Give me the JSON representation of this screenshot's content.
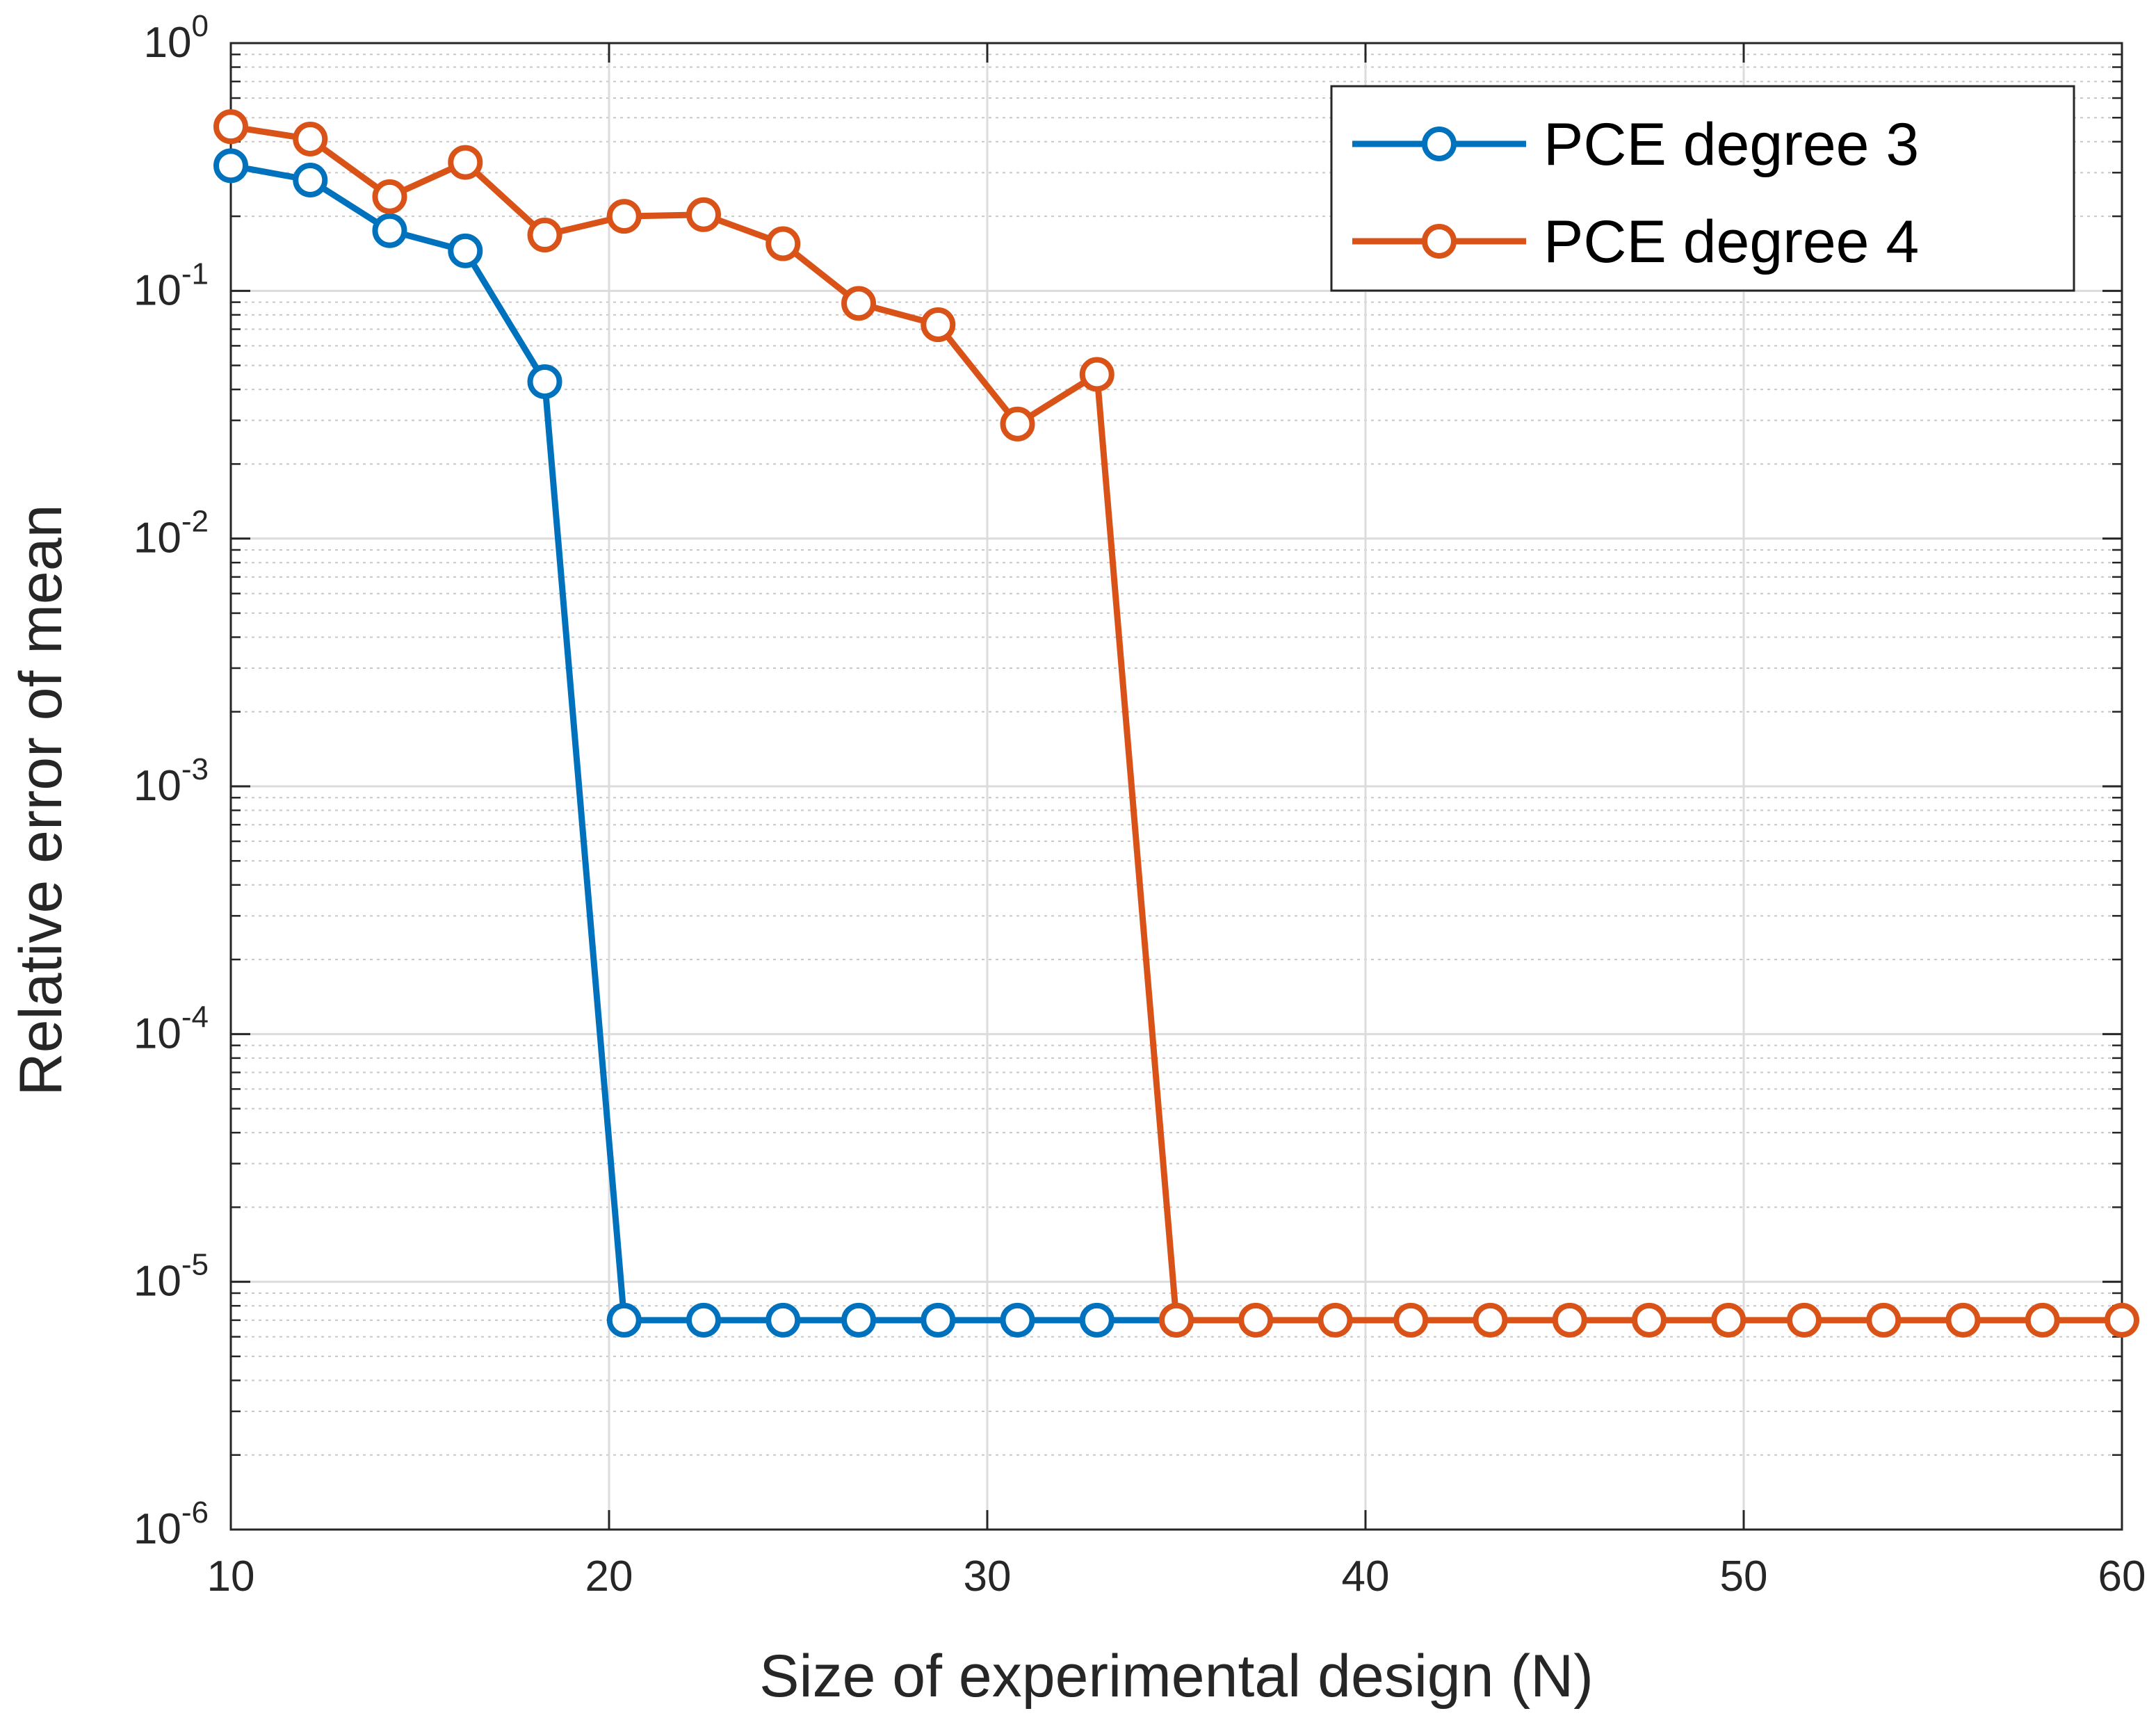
{
  "chart_data": {
    "type": "line",
    "title": "",
    "xlabel": "Size of experimental design (N)",
    "ylabel": "Relative error of mean",
    "x_scale": "linear",
    "y_scale": "log",
    "xlim": [
      10,
      60
    ],
    "ylim": [
      1e-06,
      1
    ],
    "x_ticks": [
      "10",
      "20",
      "30",
      "40",
      "50",
      "60"
    ],
    "y_ticks": [
      {
        "base": "10",
        "exp": "-6"
      },
      {
        "base": "10",
        "exp": "-5"
      },
      {
        "base": "10",
        "exp": "-4"
      },
      {
        "base": "10",
        "exp": "-3"
      },
      {
        "base": "10",
        "exp": "-2"
      },
      {
        "base": "10",
        "exp": "-1"
      },
      {
        "base": "10",
        "exp": "0"
      }
    ],
    "grid": true,
    "minor_grid": true,
    "legend_position": "top-right",
    "series": [
      {
        "name": "PCE degree 3",
        "color": "#0072BD",
        "marker": "circle",
        "x": [
          10,
          12.1,
          14.2,
          16.2,
          18.3,
          20.4,
          22.5,
          24.6,
          26.6,
          28.7,
          30.8,
          32.9,
          35
        ],
        "y": [
          0.32,
          0.28,
          0.175,
          0.145,
          0.043,
          7e-06,
          7e-06,
          7e-06,
          7e-06,
          7e-06,
          7e-06,
          7e-06,
          7e-06
        ]
      },
      {
        "name": "PCE degree 4",
        "color": "#D95319",
        "marker": "circle",
        "x": [
          10,
          12.1,
          14.2,
          16.2,
          18.3,
          20.4,
          22.5,
          24.6,
          26.6,
          28.7,
          30.8,
          32.9,
          35,
          37.1,
          39.2,
          41.2,
          43.3,
          45.4,
          47.5,
          49.6,
          51.6,
          53.7,
          55.8,
          57.9,
          60
        ],
        "y": [
          0.46,
          0.41,
          0.24,
          0.33,
          0.168,
          0.2,
          0.203,
          0.155,
          0.089,
          0.073,
          0.029,
          0.046,
          7e-06,
          7e-06,
          7e-06,
          7e-06,
          7e-06,
          7e-06,
          7e-06,
          7e-06,
          7e-06,
          7e-06,
          7e-06,
          7e-06,
          7e-06
        ]
      }
    ]
  }
}
